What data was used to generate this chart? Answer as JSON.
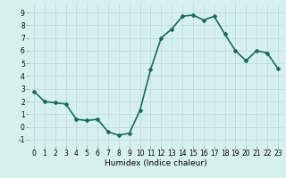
{
  "x": [
    0,
    1,
    2,
    3,
    4,
    5,
    6,
    7,
    8,
    9,
    10,
    11,
    12,
    13,
    14,
    15,
    16,
    17,
    18,
    19,
    20,
    21,
    22,
    23
  ],
  "y": [
    2.8,
    2.0,
    1.9,
    1.8,
    0.6,
    0.5,
    0.6,
    -0.4,
    -0.65,
    -0.5,
    1.3,
    4.5,
    7.0,
    7.7,
    8.7,
    8.8,
    8.4,
    8.7,
    7.3,
    6.0,
    5.2,
    6.0,
    5.8,
    4.6
  ],
  "line_color": "#1a6b5a",
  "marker": "D",
  "marker_size": 2.0,
  "bg_color": "#d6f0f0",
  "grid_color": "#b8d8d8",
  "xlabel": "Humidex (Indice chaleur)",
  "ylim": [
    -1.5,
    9.7
  ],
  "xlim": [
    -0.5,
    23.5
  ],
  "yticks": [
    -1,
    0,
    1,
    2,
    3,
    4,
    5,
    6,
    7,
    8,
    9
  ],
  "xticks": [
    0,
    1,
    2,
    3,
    4,
    5,
    6,
    7,
    8,
    9,
    10,
    11,
    12,
    13,
    14,
    15,
    16,
    17,
    18,
    19,
    20,
    21,
    22,
    23
  ],
  "xlabel_fontsize": 6.5,
  "tick_fontsize": 5.5,
  "line_width": 1.2
}
